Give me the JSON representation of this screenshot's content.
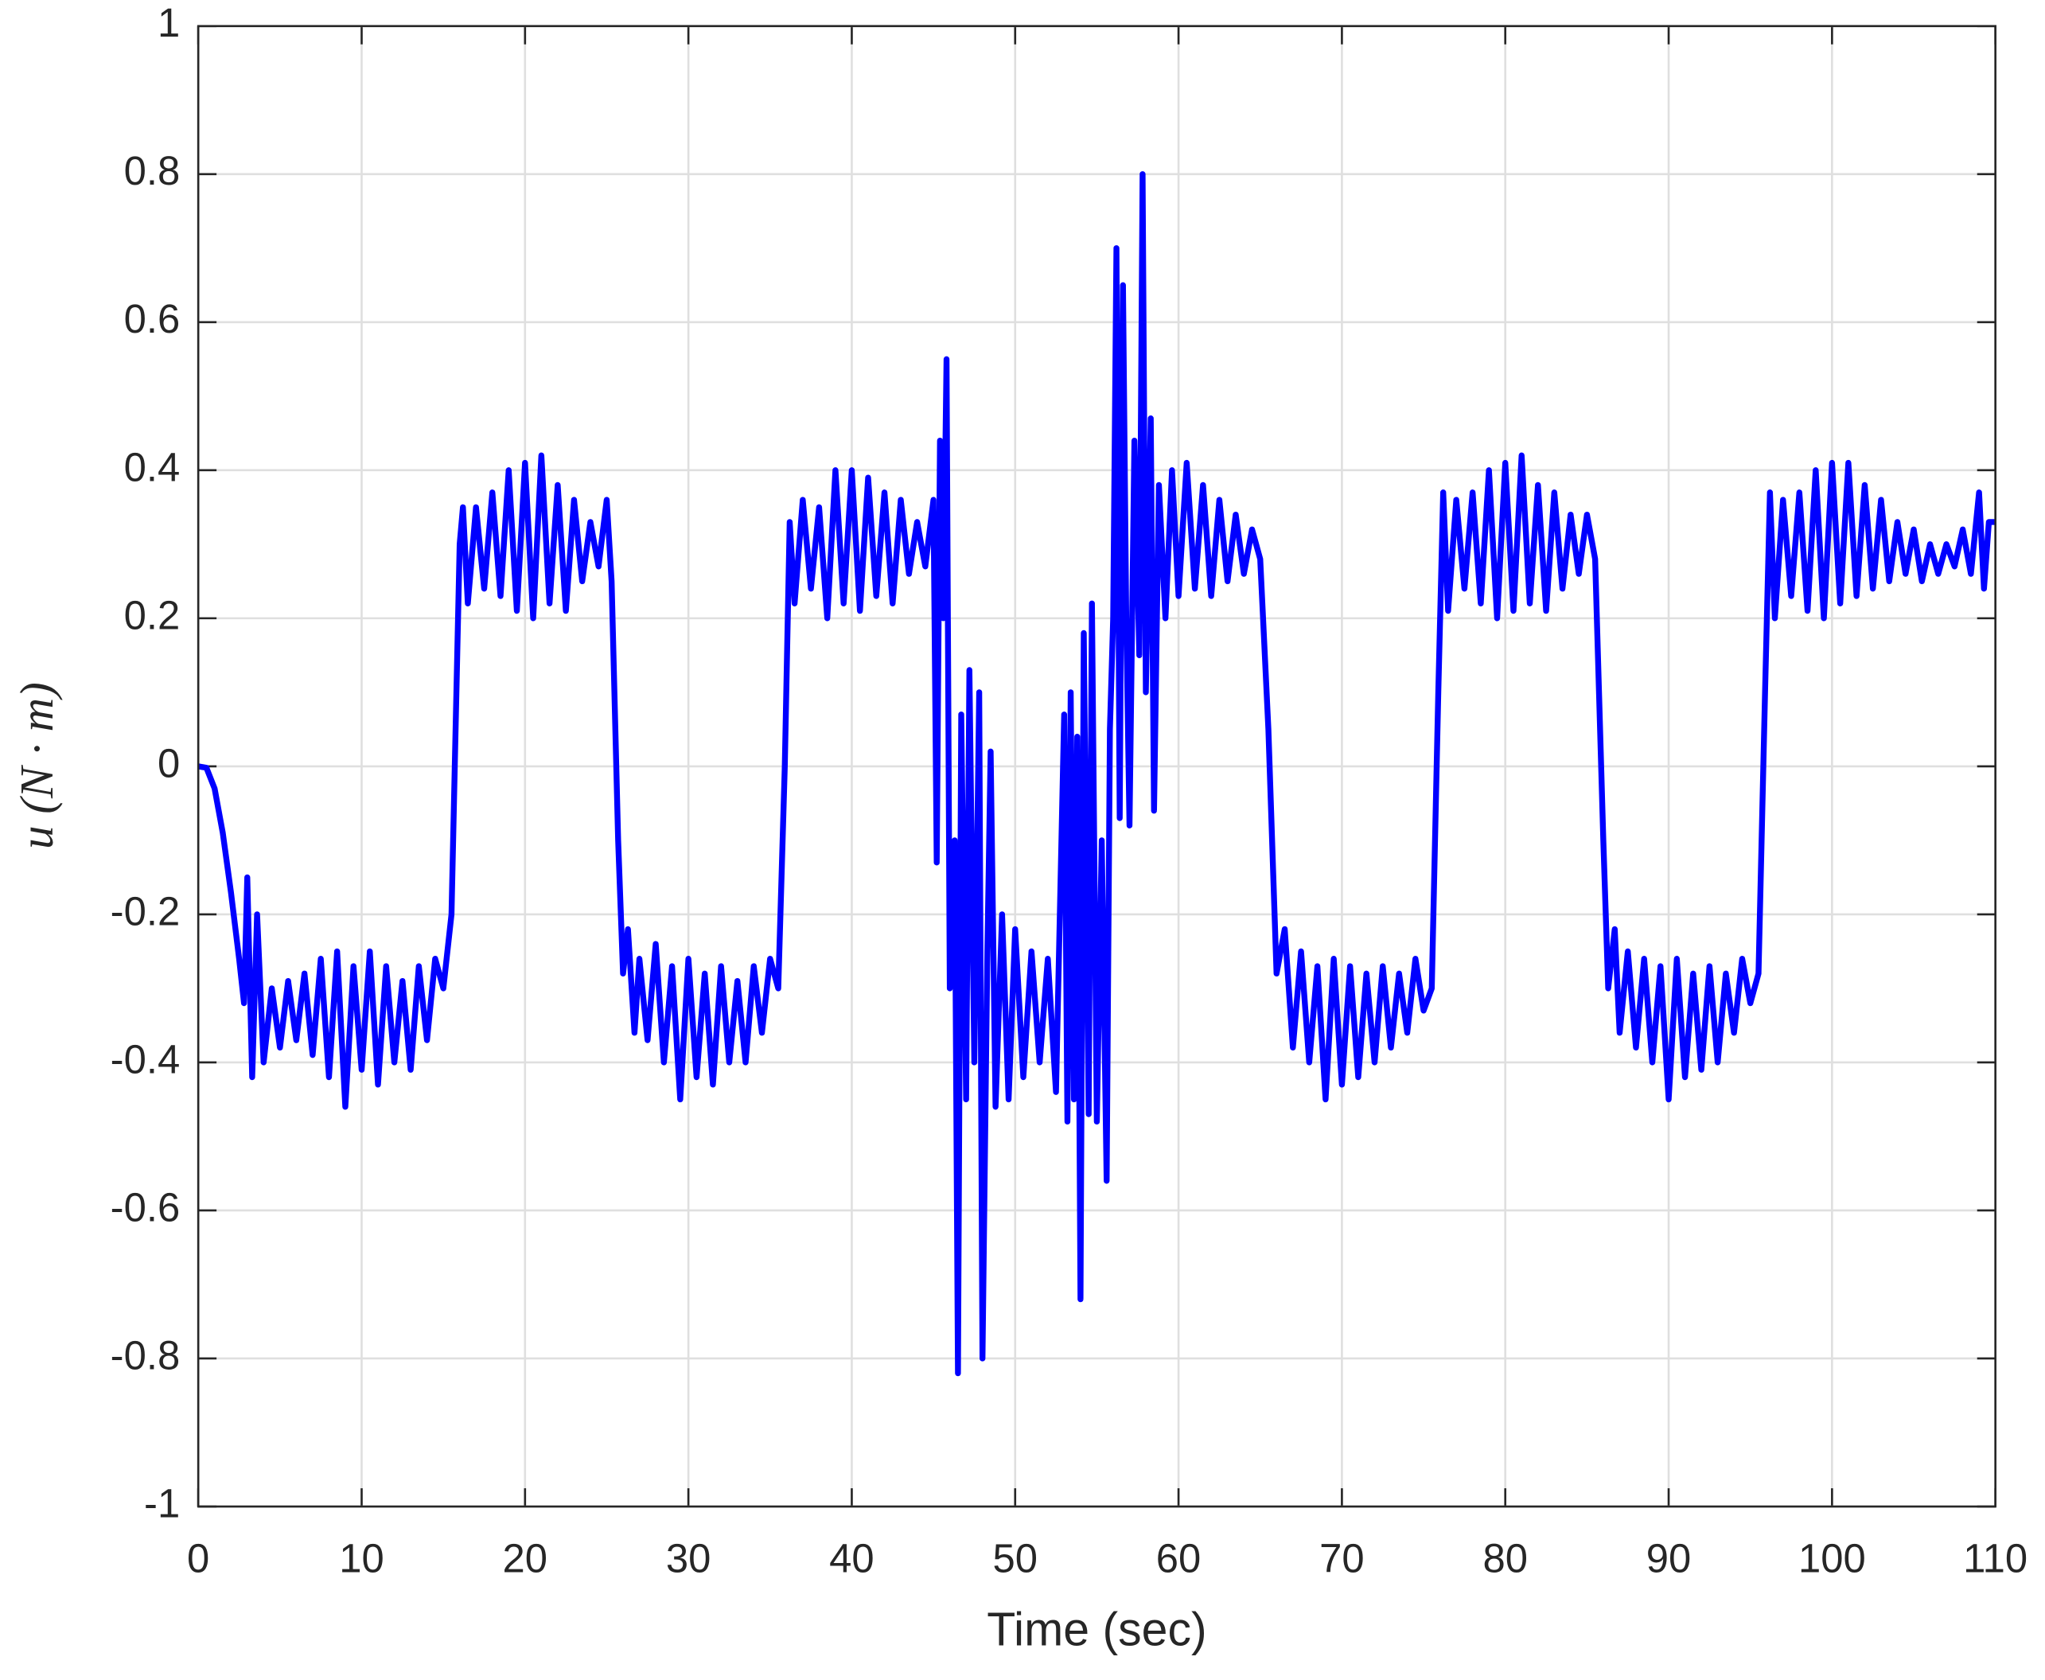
{
  "chart_data": {
    "type": "line",
    "xlabel": "Time (sec)",
    "ylabel": "u (N · m)",
    "xlim": [
      0,
      110
    ],
    "ylim": [
      -1,
      1
    ],
    "xticks": [
      0,
      10,
      20,
      30,
      40,
      50,
      60,
      70,
      80,
      90,
      100,
      110
    ],
    "yticks": [
      -1,
      -0.8,
      -0.6,
      -0.4,
      -0.2,
      0,
      0.2,
      0.4,
      0.6,
      0.8,
      1
    ],
    "grid": true,
    "x": [
      0,
      0.5,
      1,
      1.5,
      2,
      2.5,
      2.8,
      3,
      3.3,
      3.6,
      4,
      4.5,
      5,
      5.5,
      6,
      6.5,
      7,
      7.5,
      8,
      8.5,
      9,
      9.5,
      10,
      10.5,
      11,
      11.5,
      12,
      12.5,
      13,
      13.5,
      14,
      14.5,
      15,
      15.5,
      16,
      16.2,
      16.5,
      17,
      17.5,
      18,
      18.5,
      19,
      19.5,
      20,
      20.5,
      21,
      21.5,
      22,
      22.5,
      23,
      23.5,
      24,
      24.5,
      25,
      25.3,
      25.7,
      26,
      26.3,
      26.7,
      27,
      27.5,
      28,
      28.5,
      29,
      29.5,
      30,
      30.5,
      31,
      31.5,
      32,
      32.5,
      33,
      33.5,
      34,
      34.5,
      35,
      35.5,
      35.9,
      36.2,
      36.5,
      37,
      37.5,
      38,
      38.5,
      39,
      39.5,
      40,
      40.5,
      41,
      41.5,
      42,
      42.5,
      43,
      43.5,
      44,
      44.5,
      45,
      45.2,
      45.4,
      45.6,
      45.8,
      46,
      46.3,
      46.5,
      46.7,
      47,
      47.2,
      47.5,
      47.8,
      48,
      48.3,
      48.5,
      48.8,
      49.2,
      49.6,
      50,
      50.5,
      51,
      51.5,
      52,
      52.5,
      53,
      53.2,
      53.4,
      53.6,
      53.8,
      54,
      54.2,
      54.5,
      54.7,
      55,
      55.3,
      55.6,
      55.8,
      56,
      56.2,
      56.4,
      56.6,
      56.8,
      57,
      57.3,
      57.6,
      57.8,
      58,
      58.3,
      58.5,
      58.8,
      59.2,
      59.6,
      60,
      60.5,
      61,
      61.5,
      62,
      62.5,
      63,
      63.5,
      64,
      64.5,
      65,
      65.5,
      66,
      66.5,
      67,
      67.5,
      68,
      68.5,
      69,
      69.5,
      70,
      70.5,
      71,
      71.5,
      72,
      72.5,
      73,
      73.5,
      74,
      74.5,
      75,
      75.5,
      75.9,
      76.2,
      76.5,
      77,
      77.5,
      78,
      78.5,
      79,
      79.5,
      80,
      80.5,
      81,
      81.5,
      82,
      82.5,
      83,
      83.5,
      84,
      84.5,
      85,
      85.5,
      86,
      86.3,
      86.7,
      87,
      87.5,
      88,
      88.5,
      89,
      89.5,
      90,
      90.5,
      91,
      91.5,
      92,
      92.5,
      93,
      93.5,
      94,
      94.5,
      95,
      95.5,
      95.9,
      96.2,
      96.5,
      97,
      97.5,
      98,
      98.5,
      99,
      99.5,
      100,
      100.5,
      101,
      101.5,
      102,
      102.5,
      103,
      103.5,
      104,
      104.5,
      105,
      105.5,
      106,
      106.5,
      107,
      107.5,
      108,
      108.5,
      109,
      109.3,
      109.6,
      110
    ],
    "series": [
      {
        "color": "#0000ff",
        "values": [
          0,
          -0.002,
          -0.03,
          -0.09,
          -0.17,
          -0.26,
          -0.32,
          -0.15,
          -0.42,
          -0.2,
          -0.4,
          -0.3,
          -0.38,
          -0.29,
          -0.37,
          -0.28,
          -0.39,
          -0.26,
          -0.42,
          -0.25,
          -0.46,
          -0.27,
          -0.41,
          -0.25,
          -0.43,
          -0.27,
          -0.4,
          -0.29,
          -0.41,
          -0.27,
          -0.37,
          -0.26,
          -0.3,
          -0.2,
          0.3,
          0.35,
          0.22,
          0.35,
          0.24,
          0.37,
          0.23,
          0.4,
          0.21,
          0.41,
          0.2,
          0.42,
          0.22,
          0.38,
          0.21,
          0.36,
          0.25,
          0.33,
          0.27,
          0.36,
          0.25,
          -0.1,
          -0.28,
          -0.22,
          -0.36,
          -0.26,
          -0.37,
          -0.24,
          -0.4,
          -0.27,
          -0.45,
          -0.26,
          -0.42,
          -0.28,
          -0.43,
          -0.27,
          -0.4,
          -0.29,
          -0.4,
          -0.27,
          -0.36,
          -0.26,
          -0.3,
          0,
          0.33,
          0.22,
          0.36,
          0.24,
          0.35,
          0.2,
          0.4,
          0.22,
          0.4,
          0.21,
          0.39,
          0.23,
          0.37,
          0.22,
          0.36,
          0.26,
          0.33,
          0.27,
          0.36,
          -0.13,
          0.44,
          0.2,
          0.55,
          -0.3,
          -0.1,
          -0.82,
          0.07,
          -0.45,
          0.13,
          -0.4,
          0.1,
          -0.8,
          -0.25,
          0.02,
          -0.46,
          -0.2,
          -0.45,
          -0.22,
          -0.42,
          -0.25,
          -0.4,
          -0.26,
          -0.44,
          0.07,
          -0.48,
          0.1,
          -0.45,
          0.04,
          -0.72,
          0.18,
          -0.47,
          0.22,
          -0.48,
          -0.1,
          -0.56,
          0.05,
          0.2,
          0.7,
          -0.07,
          0.65,
          0.2,
          -0.08,
          0.44,
          0.15,
          0.8,
          0.1,
          0.47,
          -0.06,
          0.38,
          0.2,
          0.4,
          0.23,
          0.41,
          0.24,
          0.38,
          0.23,
          0.36,
          0.25,
          0.34,
          0.26,
          0.32,
          0.28,
          0.05,
          -0.28,
          -0.22,
          -0.38,
          -0.25,
          -0.4,
          -0.27,
          -0.45,
          -0.26,
          -0.43,
          -0.27,
          -0.42,
          -0.28,
          -0.4,
          -0.27,
          -0.38,
          -0.28,
          -0.36,
          -0.26,
          -0.33,
          -0.3,
          0.1,
          0.37,
          0.21,
          0.36,
          0.24,
          0.37,
          0.22,
          0.4,
          0.2,
          0.41,
          0.21,
          0.42,
          0.22,
          0.38,
          0.21,
          0.37,
          0.24,
          0.34,
          0.26,
          0.34,
          0.28,
          -0.1,
          -0.3,
          -0.22,
          -0.36,
          -0.25,
          -0.38,
          -0.26,
          -0.4,
          -0.27,
          -0.45,
          -0.26,
          -0.42,
          -0.28,
          -0.41,
          -0.27,
          -0.4,
          -0.28,
          -0.36,
          -0.26,
          -0.32,
          -0.28,
          0.1,
          0.37,
          0.2,
          0.36,
          0.23,
          0.37,
          0.21,
          0.4,
          0.2,
          0.41,
          0.22,
          0.41,
          0.23,
          0.38,
          0.24,
          0.36,
          0.25,
          0.33,
          0.26,
          0.32,
          0.25,
          0.3,
          0.26,
          0.3,
          0.27,
          0.32,
          0.26,
          0.37,
          0.24,
          0.33,
          0.33
        ]
      }
    ]
  }
}
